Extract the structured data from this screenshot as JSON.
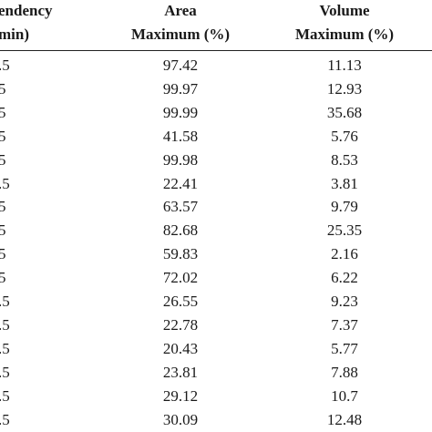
{
  "table": {
    "header": [
      [
        "endency",
        "min)"
      ],
      [
        "Area",
        "Maximum (%)"
      ],
      [
        "Volume",
        "Maximum (%)"
      ]
    ],
    "rows": [
      [
        ".5",
        "97.42",
        "11.13"
      ],
      [
        "5",
        "99.97",
        "12.93"
      ],
      [
        "5",
        "99.99",
        "35.68"
      ],
      [
        "5",
        "41.58",
        "5.76"
      ],
      [
        "5",
        "99.98",
        "8.53"
      ],
      [
        ".5",
        "22.41",
        "3.81"
      ],
      [
        "5",
        "63.57",
        "9.79"
      ],
      [
        "5",
        "82.68",
        "25.35"
      ],
      [
        "5",
        "59.83",
        "2.16"
      ],
      [
        "5",
        "72.02",
        "6.22"
      ],
      [
        ".5",
        "26.55",
        "9.23"
      ],
      [
        ".5",
        "22.78",
        "7.37"
      ],
      [
        ".5",
        "20.43",
        "5.77"
      ],
      [
        ".5",
        "23.81",
        "7.88"
      ],
      [
        ".5",
        "29.12",
        "10.7"
      ],
      [
        ".5",
        "30.09",
        "12.48"
      ]
    ]
  }
}
